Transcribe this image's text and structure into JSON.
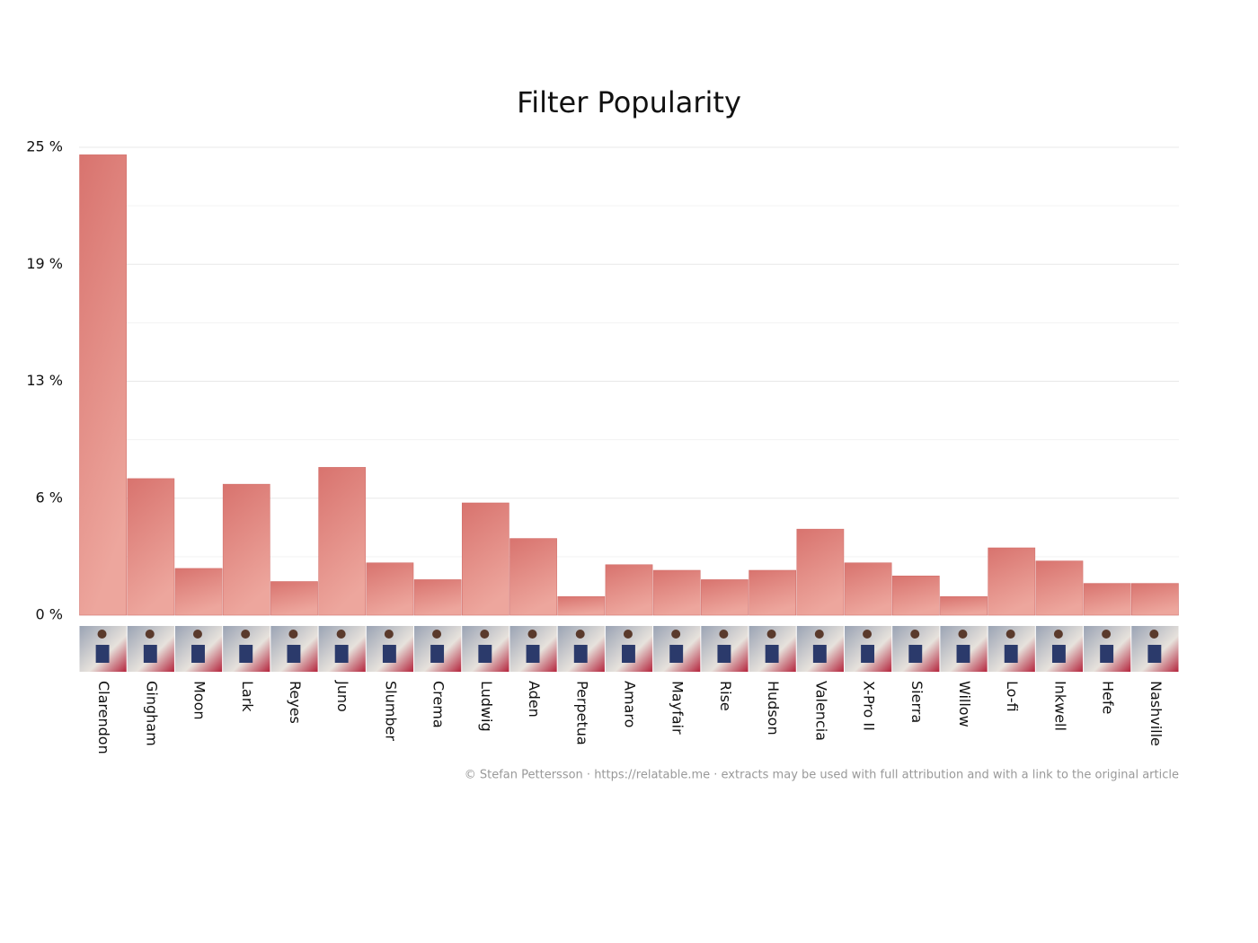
{
  "chart_data": {
    "type": "bar",
    "title": "Filter Popularity",
    "categories": [
      "Clarendon",
      "Gingham",
      "Moon",
      "Lark",
      "Reyes",
      "Juno",
      "Slumber",
      "Crema",
      "Ludwig",
      "Aden",
      "Perpetua",
      "Amaro",
      "Mayfair",
      "Rise",
      "Hudson",
      "Valencia",
      "X-Pro II",
      "Sierra",
      "Willow",
      "Lo-fi",
      "Inkwell",
      "Hefe",
      "Nashville"
    ],
    "values": [
      24.6,
      7.3,
      2.5,
      7.0,
      1.8,
      7.9,
      2.8,
      1.9,
      6.0,
      4.1,
      1.0,
      2.7,
      2.4,
      1.9,
      2.4,
      4.6,
      2.8,
      2.1,
      1.0,
      3.6,
      2.9,
      1.7,
      1.7
    ],
    "gradient": [
      "#d8736e",
      "#eda69d"
    ],
    "ylim": [
      0,
      25
    ],
    "yticks": [
      {
        "value": 0,
        "label": "0 %"
      },
      {
        "value": 6.25,
        "label": "6 %"
      },
      {
        "value": 12.5,
        "label": "13 %"
      },
      {
        "value": 18.75,
        "label": "19 %"
      },
      {
        "value": 25,
        "label": "25 %"
      }
    ],
    "minor_yticks": [
      3.125,
      9.375,
      15.625,
      21.875
    ],
    "grid": true,
    "footer": "© Stefan Pettersson · https://relatable.me · extracts may be used with full attribution and with a link to the original article"
  }
}
